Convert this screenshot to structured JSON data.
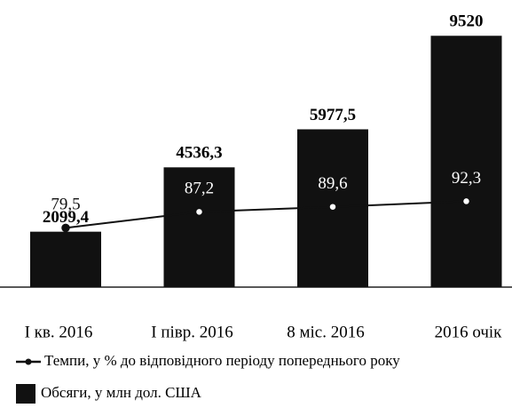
{
  "chart_data": {
    "type": "bar-line",
    "categories": [
      "I кв. 2016",
      "I півр. 2016",
      "8 міс. 2016",
      "2016 очік"
    ],
    "series": [
      {
        "name": "Обсяги, у млн дол. США",
        "type": "bar",
        "color": "#111111",
        "values": [
          2099.4,
          4536.3,
          5977.5,
          9520
        ],
        "value_labels": [
          "2099,4",
          "4536,3",
          "5977,5",
          "9520"
        ]
      },
      {
        "name": "Темпи, у % до відповідного періоду  попереднього року",
        "type": "line",
        "axis": "y2",
        "color": "#111111",
        "values": [
          79.5,
          87.2,
          89.6,
          92.3
        ],
        "value_labels": [
          "79,5",
          "87,2",
          "89,6",
          "92,3"
        ]
      }
    ],
    "ylim": [
      0,
      10000
    ],
    "y2lim": [
      51,
      178
    ]
  }
}
